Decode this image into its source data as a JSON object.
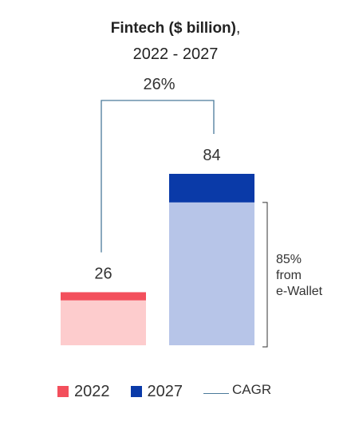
{
  "title": {
    "main_bold": "Fintech ($ billion)",
    "main_rest": ",",
    "period": "2022 - 2027"
  },
  "colors": {
    "red_top": "#f34f5c",
    "red_light": "#fdcccd",
    "blue_top": "#0a3aa8",
    "blue_light": "#b7c5e8",
    "bracket": "#4a7a9a",
    "text": "#333333"
  },
  "chart_data": {
    "type": "bar",
    "stacked": true,
    "categories": [
      "2022",
      "2027"
    ],
    "totals": [
      26,
      84
    ],
    "bar_top_segment": [
      4,
      14
    ],
    "bar_base_segment": [
      22,
      70
    ],
    "total_labels": [
      "26",
      "84"
    ],
    "cagr_label": "26%",
    "annotation": {
      "bar": "2027",
      "lines": [
        "85%",
        "from",
        "e-Wallet"
      ]
    },
    "ylim": [
      0,
      84
    ]
  },
  "legend": {
    "items": [
      {
        "label": "2022",
        "color": "#f34f5c"
      },
      {
        "label": "2027",
        "color": "#0a3aa8"
      }
    ],
    "cagr": "CAGR"
  }
}
